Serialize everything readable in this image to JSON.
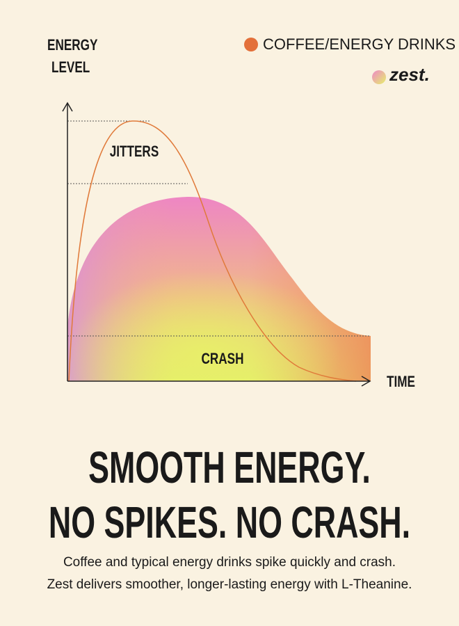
{
  "diagram": {
    "y_axis_label": [
      "ENERGY",
      "LEVEL"
    ],
    "x_axis_label": "TIME",
    "legend": "COFFEE/ENERGY DRINKS",
    "brand": "zest.",
    "region_labels": {
      "top": "JITTERS",
      "bottom": "CRASH"
    }
  },
  "headline": [
    "SMOOTH ENERGY.",
    "NO SPIKES. NO CRASH."
  ],
  "body": [
    "Coffee and typical energy drinks spike quickly and crash.",
    "Zest delivers smoother, longer-lasting energy with L-Theanine."
  ]
}
